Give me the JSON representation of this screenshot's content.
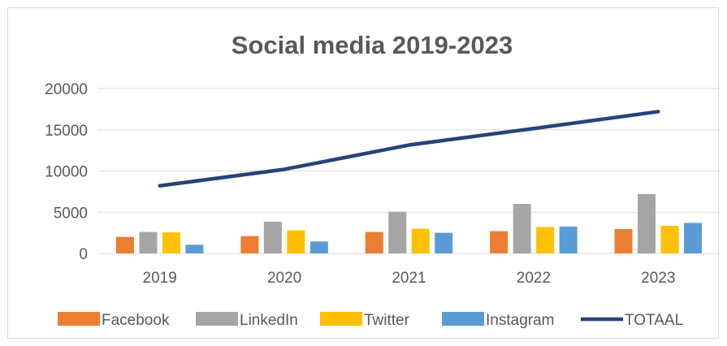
{
  "chart_data": {
    "type": "bar",
    "title": "Social media 2019-2023",
    "categories": [
      "2019",
      "2020",
      "2021",
      "2022",
      "2023"
    ],
    "series": [
      {
        "name": "Facebook",
        "type": "bar",
        "color": "#ED7D31",
        "values": [
          2000,
          2100,
          2600,
          2700,
          2950
        ]
      },
      {
        "name": "LinkedIn",
        "type": "bar",
        "color": "#A5A5A5",
        "values": [
          2600,
          3850,
          5050,
          6000,
          7200
        ]
      },
      {
        "name": "Twitter",
        "type": "bar",
        "color": "#FFC000",
        "values": [
          2550,
          2800,
          3000,
          3200,
          3350
        ]
      },
      {
        "name": "Instagram",
        "type": "bar",
        "color": "#5B9BD5",
        "values": [
          1050,
          1450,
          2500,
          3250,
          3700
        ]
      },
      {
        "name": "TOTAAL",
        "type": "line",
        "color": "#264478",
        "values": [
          8200,
          10200,
          13150,
          15150,
          17200
        ]
      }
    ],
    "yticks": [
      "0",
      "5000",
      "10000",
      "15000",
      "20000"
    ],
    "ylim": [
      0,
      20000
    ],
    "grid": true,
    "legend_position": "bottom"
  }
}
